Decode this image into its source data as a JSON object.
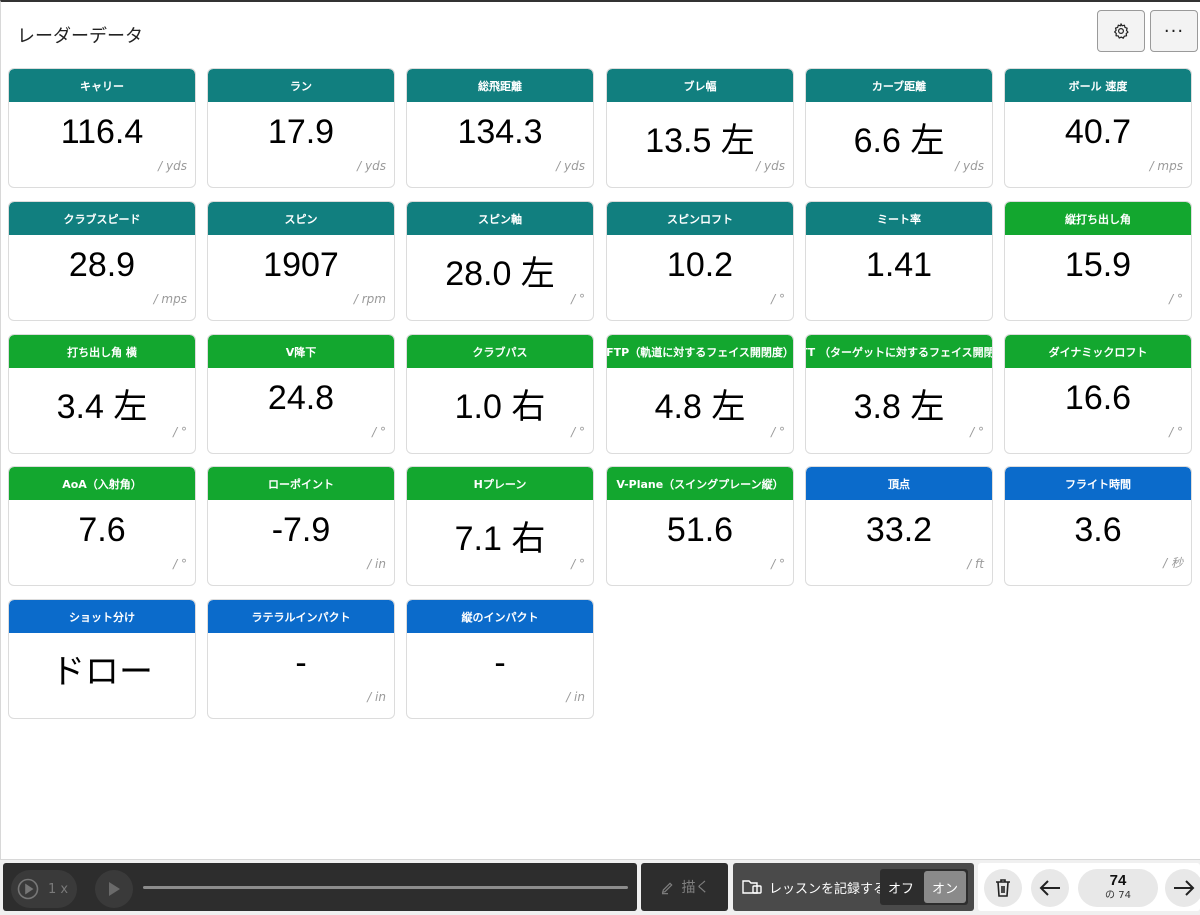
{
  "header": {
    "title": "レーダーデータ",
    "settings_icon": "gear-icon",
    "more_label": "..."
  },
  "colors": {
    "teal": "#117f7f",
    "green": "#13a72f",
    "blue": "#0b6bcb"
  },
  "cards": [
    {
      "label": "キャリー",
      "value": "116.4",
      "unit": "/ yds",
      "color": "teal"
    },
    {
      "label": "ラン",
      "value": "17.9",
      "unit": "/ yds",
      "color": "teal"
    },
    {
      "label": "総飛距離",
      "value": "134.3",
      "unit": "/ yds",
      "color": "teal"
    },
    {
      "label": "ブレ幅",
      "value": "13.5 左",
      "unit": "/ yds",
      "color": "teal"
    },
    {
      "label": "カーブ距離",
      "value": "6.6 左",
      "unit": "/ yds",
      "color": "teal"
    },
    {
      "label": "ボール 速度",
      "value": "40.7",
      "unit": "/ mps",
      "color": "teal"
    },
    {
      "label": "クラブスピード",
      "value": "28.9",
      "unit": "/ mps",
      "color": "teal"
    },
    {
      "label": "スピン",
      "value": "1907",
      "unit": "/ rpm",
      "color": "teal"
    },
    {
      "label": "スピン軸",
      "value": "28.0 左",
      "unit": "/ °",
      "color": "teal"
    },
    {
      "label": "スピンロフト",
      "value": "10.2",
      "unit": "/ °",
      "color": "teal"
    },
    {
      "label": "ミート率",
      "value": "1.41",
      "unit": "",
      "color": "teal"
    },
    {
      "label": "縦打ち出し角",
      "value": "15.9",
      "unit": "/ °",
      "color": "green"
    },
    {
      "label": "打ち出し角 横",
      "value": "3.4 左",
      "unit": "/ °",
      "color": "green"
    },
    {
      "label": "V降下",
      "value": "24.8",
      "unit": "/ °",
      "color": "green"
    },
    {
      "label": "クラブパス",
      "value": "1.0 右",
      "unit": "/ °",
      "color": "green"
    },
    {
      "label": "FTP（軌道に対するフェイス開閉度）",
      "value": "4.8 左",
      "unit": "/ °",
      "color": "green"
    },
    {
      "label": "FTT （ターゲットに対するフェイス開閉度",
      "value": "3.8 左",
      "unit": "/ °",
      "color": "green"
    },
    {
      "label": "ダイナミックロフト",
      "value": "16.6",
      "unit": "/ °",
      "color": "green"
    },
    {
      "label": "AoA（入射角）",
      "value": "7.6",
      "unit": "/ °",
      "color": "green"
    },
    {
      "label": "ローポイント",
      "value": "-7.9",
      "unit": "/ in",
      "color": "green"
    },
    {
      "label": "Hプレーン",
      "value": "7.1 右",
      "unit": "/ °",
      "color": "green"
    },
    {
      "label": "V-Plane（スイングプレーン縦）",
      "value": "51.6",
      "unit": "/ °",
      "color": "green"
    },
    {
      "label": "頂点",
      "value": "33.2",
      "unit": "/ ft",
      "color": "blue"
    },
    {
      "label": "フライト時間",
      "value": "3.6",
      "unit": "/ 秒",
      "color": "blue"
    },
    {
      "label": "ショット分け",
      "value": "ドロー",
      "unit": "",
      "color": "blue"
    },
    {
      "label": "ラテラルインパクト",
      "value": "-",
      "unit": "/ in",
      "color": "blue"
    },
    {
      "label": "縦のインパクト",
      "value": "-",
      "unit": "/ in",
      "color": "blue"
    }
  ],
  "player": {
    "speed_label": "1 x",
    "play_icon": "play-icon",
    "progress": 0.0
  },
  "draw": {
    "label": "描く",
    "icon": "pen-icon"
  },
  "record": {
    "label": "レッスンを記録する",
    "off_label": "オフ",
    "on_label": "オン",
    "state": "on"
  },
  "nav": {
    "current": "74",
    "total_label": "の 74",
    "delete_icon": "trash-icon",
    "prev_icon": "arrow-left-icon",
    "next_icon": "arrow-right-icon"
  }
}
